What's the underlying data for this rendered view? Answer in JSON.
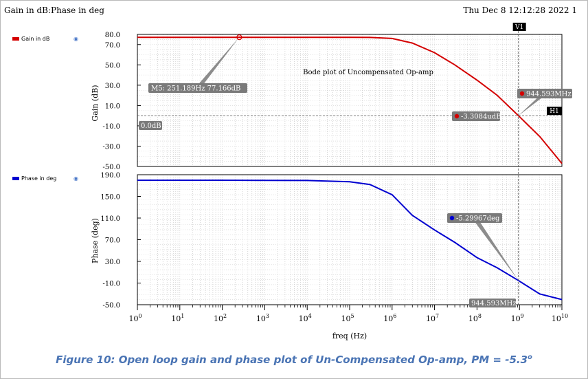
{
  "header": {
    "left_title": "Gain in dB:Phase in deg",
    "timestamp": "Thu Dec 8 12:12:28 2022  1"
  },
  "legend": {
    "gain_label": "Gain in dB",
    "phase_label": "Phase in deg",
    "gain_color": "#d40000",
    "phase_color": "#0000d0"
  },
  "caption": {
    "text": "Figure 10: Open loop gain and phase plot of Un-Compensated Op-amp, PM = -5.3",
    "superscript": "o"
  },
  "chart_data": [
    {
      "type": "line",
      "title": "Bode plot of Uncompensated Op-amp",
      "xlabel": "freq (Hz)",
      "ylabel": "Gain (dB)",
      "xscale": "log",
      "xlim": [
        1,
        10000000000
      ],
      "ylim": [
        -50,
        80
      ],
      "yticks": [
        "80.0",
        "70.0",
        "50.0",
        "30.0",
        "10.0",
        "-10.0",
        "-30.0",
        "-50.0"
      ],
      "ytick_values": [
        80,
        70,
        50,
        30,
        10,
        -10,
        -30,
        -50
      ],
      "grid": true,
      "series": [
        {
          "name": "Gain in dB",
          "color": "#d40000",
          "x": [
            1,
            10,
            100,
            1000,
            10000,
            100000,
            300000,
            1000000,
            3000000,
            10000000,
            30000000,
            100000000,
            300000000,
            944593000,
            3000000000,
            10000000000
          ],
          "y": [
            77.17,
            77.17,
            77.17,
            77.17,
            77.17,
            77.1,
            77.0,
            76.0,
            71.5,
            62.0,
            50.0,
            35.0,
            20.0,
            0.0,
            -20.5,
            -47.0
          ]
        }
      ],
      "annotations": {
        "marker_m5": "M5: 251.189Hz 77.166dB",
        "hline_label": "0.0dB",
        "crossing_freq": "944.593MHz",
        "crossing_gain": "-3.3084udB",
        "vmarker": "V1",
        "hmarker": "H1"
      }
    },
    {
      "type": "line",
      "xlabel": "freq (Hz)",
      "ylabel": "Phase (deg)",
      "xscale": "log",
      "xlim": [
        1,
        10000000000
      ],
      "ylim": [
        -50,
        190
      ],
      "yticks": [
        "190.0",
        "150.0",
        "110.0",
        "70.0",
        "30.0",
        "-10.0",
        "-50.0"
      ],
      "ytick_values": [
        190,
        150,
        110,
        70,
        30,
        -10,
        -50
      ],
      "xticks": [
        "10^0",
        "10^1",
        "10^2",
        "10^3",
        "10^4",
        "10^5",
        "10^6",
        "10^7",
        "10^8",
        "10^9",
        "10^10"
      ],
      "grid": true,
      "series": [
        {
          "name": "Phase in deg",
          "color": "#0000d0",
          "x": [
            1,
            10,
            100,
            1000,
            10000,
            100000,
            300000,
            1000000,
            3000000,
            10000000,
            30000000,
            100000000,
            300000000,
            944593000,
            3000000000,
            10000000000
          ],
          "y": [
            179.8,
            179.8,
            179.8,
            179.6,
            179.3,
            177.0,
            172.0,
            153.0,
            115.0,
            88.0,
            65.0,
            37.0,
            18.0,
            -5.3,
            -30.0,
            -40.5
          ]
        }
      ],
      "annotations": {
        "phase_marker": "-5.29967deg",
        "freq_marker": "944.593MHz"
      }
    }
  ]
}
